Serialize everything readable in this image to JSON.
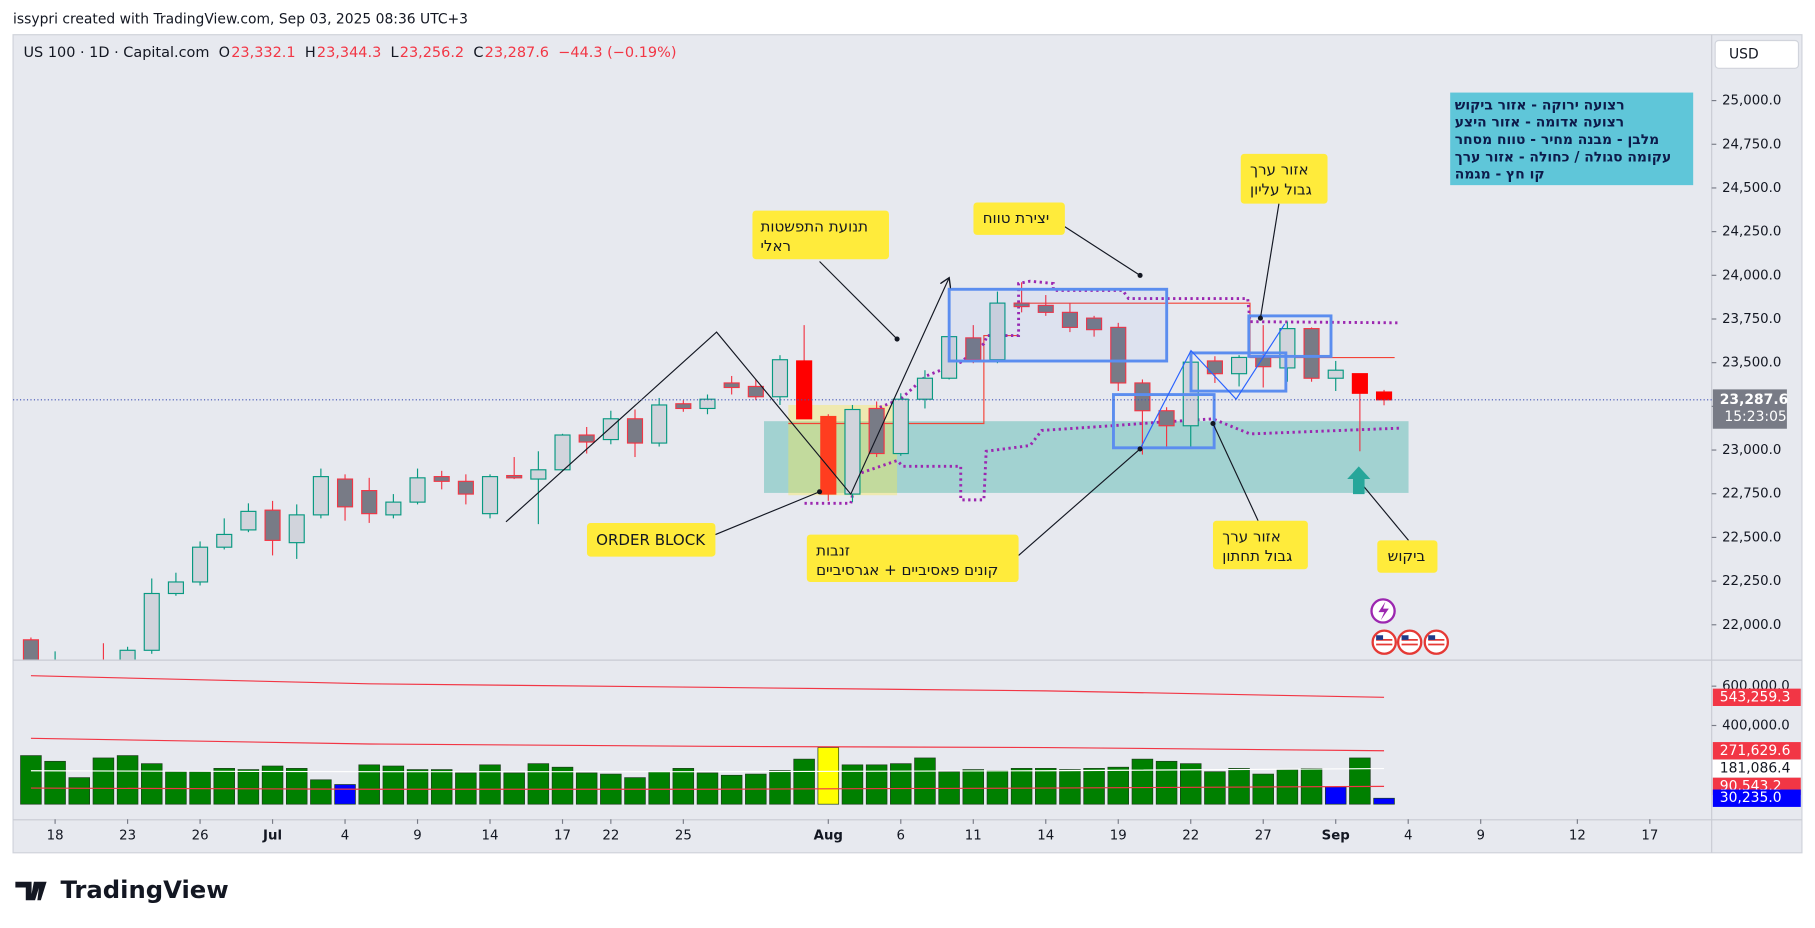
{
  "header": "issypri created with TradingView.com, Sep 03, 2025 08:36 UTC+3",
  "logo": "TradingView",
  "annotations": [
    [
      "תנועת התפשטות",
      "ראלי"
    ],
    [
      "יצירת טווח"
    ],
    [
      "אזור ערך",
      "גבול עליון"
    ],
    [
      "ORDER BLOCK"
    ],
    [
      "זנבות",
      "קונים פאסיביים + אגרסיביים"
    ],
    [
      "אזור ערך",
      "גבול תחתון"
    ],
    [
      "ביקוש"
    ]
  ],
  "legend_box": [
    "רצועה ירוקה - אזור ביקוש",
    "רצועה אדומה - אזור היצע",
    "מלבן - מבנה מחיר - טווח מסחר",
    "עקומה סגולה / כחולה - אזור ערך",
    "קו חץ - מגמה"
  ],
  "chart_data": [
    {
      "type": "candlestick",
      "title": "US 100 · 1D · Capital.com",
      "ohlc_legend": [
        {
          "key": "O",
          "value": "23,332.1"
        },
        {
          "key": "H",
          "value": "23,344.3"
        },
        {
          "key": "L",
          "value": "23,256.2"
        },
        {
          "key": "C",
          "value": "23,287.6"
        }
      ],
      "change": "−44.3 (−0.19%)",
      "currency": "USD",
      "price_badge": {
        "value": 23287.6,
        "label": "23,287.6"
      },
      "countdown": "15:23:05",
      "up_color": "#089981",
      "up_fill": "#d1d4dc",
      "down_color": "#f23645",
      "down_fill": "#787b86",
      "grid": false,
      "xlim": [
        -0.74,
        69.56
      ],
      "ylim": [
        21801,
        25377
      ],
      "yticks": [
        {
          "value": 22000,
          "label": "22,000.0"
        },
        {
          "value": 22250,
          "label": "22,250.0"
        },
        {
          "value": 22500,
          "label": "22,500.0"
        },
        {
          "value": 22750,
          "label": "22,750.0"
        },
        {
          "value": 23000,
          "label": "23,000.0"
        },
        {
          "value": 23250,
          "label": "23,250.0"
        },
        {
          "value": 23500,
          "label": "23,500.0"
        },
        {
          "value": 23750,
          "label": "23,750.0"
        },
        {
          "value": 24000,
          "label": "24,000.0"
        },
        {
          "value": 24250,
          "label": "24,250.0"
        },
        {
          "value": 24500,
          "label": "24,500.0"
        },
        {
          "value": 24750,
          "label": "24,750.0"
        },
        {
          "value": 25000,
          "label": "25,000.0"
        }
      ],
      "x": [
        0,
        1,
        2,
        3,
        4,
        5,
        6,
        7,
        8,
        9,
        10,
        11,
        12,
        13,
        14,
        15,
        16,
        17,
        18,
        19,
        20,
        21,
        22,
        23,
        24,
        25,
        26,
        27,
        28,
        29,
        30,
        31,
        32,
        33,
        34,
        35,
        36,
        37,
        38,
        39,
        40,
        41,
        42,
        43,
        44,
        45,
        46,
        47,
        48,
        49,
        50,
        51,
        52,
        53,
        54,
        55,
        56
      ],
      "open": [
        21914,
        21760,
        21720,
        21780,
        21760,
        21854,
        22179,
        22245,
        22444,
        22543,
        22656,
        22470,
        22629,
        22834,
        22768,
        22629,
        22702,
        22848,
        22821,
        22636,
        22854,
        22834,
        22887,
        23086,
        23060,
        23179,
        23040,
        23265,
        23238,
        23384,
        23364,
        23305,
        23510,
        23192,
        22748,
        23238,
        22980,
        23291,
        23411,
        23642,
        23517,
        23841,
        23828,
        23788,
        23755,
        23702,
        23384,
        23225,
        23139,
        23510,
        23437,
        23530,
        23470,
        23695,
        23411,
        23437,
        23332.1
      ],
      "high": [
        21927,
        21848,
        21780,
        21894,
        21874,
        22265,
        22298,
        22477,
        22609,
        22695,
        22709,
        22689,
        22894,
        22861,
        22841,
        22748,
        22894,
        22881,
        22861,
        22861,
        22960,
        22993,
        23093,
        23132,
        23225,
        23232,
        23298,
        23285,
        23318,
        23424,
        23404,
        23543,
        23715,
        23205,
        23258,
        23278,
        23325,
        23457,
        23662,
        23715,
        23907,
        23960,
        23887,
        23841,
        23768,
        23728,
        23404,
        23245,
        23537,
        23537,
        23543,
        23715,
        23735,
        23702,
        23510,
        23437,
        23344.3
      ],
      "low": [
        21760,
        21700,
        21650,
        21700,
        21740,
        21834,
        22166,
        22225,
        22431,
        22530,
        22397,
        22377,
        22609,
        22596,
        22583,
        22609,
        22689,
        22775,
        22689,
        22609,
        22834,
        22576,
        22880,
        22980,
        23033,
        22960,
        23020,
        23219,
        23205,
        23318,
        23285,
        23258,
        23179,
        22709,
        22702,
        22960,
        22967,
        23238,
        23404,
        23497,
        23497,
        23788,
        23768,
        23675,
        23649,
        23338,
        22974,
        23020,
        23020,
        23384,
        23364,
        23358,
        23391,
        23391,
        23338,
        22993,
        23256.2
      ],
      "close": [
        21780,
        21790,
        21700,
        21750,
        21854,
        22179,
        22245,
        22444,
        22517,
        22649,
        22483,
        22629,
        22848,
        22675,
        22636,
        22702,
        22841,
        22821,
        22748,
        22848,
        22841,
        22887,
        23086,
        23046,
        23179,
        23040,
        23258,
        23238,
        23291,
        23358,
        23305,
        23517,
        23179,
        22748,
        23232,
        22980,
        23291,
        23411,
        23649,
        23517,
        23841,
        23821,
        23788,
        23702,
        23689,
        23384,
        23225,
        23139,
        23503,
        23437,
        23530,
        23477,
        23695,
        23411,
        23457,
        23325,
        23287.6
      ],
      "body_colors": [
        null,
        null,
        null,
        null,
        null,
        null,
        null,
        null,
        null,
        null,
        null,
        null,
        null,
        null,
        null,
        null,
        null,
        null,
        null,
        null,
        null,
        null,
        null,
        null,
        null,
        null,
        null,
        null,
        null,
        null,
        null,
        null,
        "#ff0000",
        "#ff3d1f",
        null,
        null,
        null,
        null,
        null,
        null,
        null,
        null,
        null,
        null,
        null,
        null,
        null,
        null,
        null,
        null,
        null,
        null,
        null,
        null,
        null,
        "#ff0000",
        "#ff0000"
      ]
    },
    {
      "type": "volume",
      "color": "#008000",
      "xlim": [
        -0.74,
        69.56
      ],
      "ylim": [
        -76500,
        723500
      ],
      "yticks": [
        {
          "value": 400000,
          "label": "400,000.0"
        },
        {
          "value": 600000,
          "label": "600,000.0"
        }
      ],
      "xticks": [
        {
          "value": 1,
          "label": "18"
        },
        {
          "value": 4,
          "label": "23"
        },
        {
          "value": 7,
          "label": "26"
        },
        {
          "value": 10,
          "label": "Jul"
        },
        {
          "value": 13,
          "label": "4"
        },
        {
          "value": 16,
          "label": "9"
        },
        {
          "value": 19,
          "label": "14"
        },
        {
          "value": 22,
          "label": "17"
        },
        {
          "value": 24,
          "label": "22"
        },
        {
          "value": 27,
          "label": "25"
        },
        {
          "value": 33,
          "label": "Aug"
        },
        {
          "value": 36,
          "label": "6"
        },
        {
          "value": 39,
          "label": "11"
        },
        {
          "value": 42,
          "label": "14"
        },
        {
          "value": 45,
          "label": "19"
        },
        {
          "value": 48,
          "label": "22"
        },
        {
          "value": 51,
          "label": "27"
        },
        {
          "value": 54,
          "label": "Sep"
        },
        {
          "value": 57,
          "label": "4"
        },
        {
          "value": 60,
          "label": "9"
        },
        {
          "value": 64,
          "label": "12"
        },
        {
          "value": 67,
          "label": "17"
        }
      ],
      "x": [
        0,
        1,
        2,
        3,
        4,
        5,
        6,
        7,
        8,
        9,
        10,
        11,
        12,
        13,
        14,
        15,
        16,
        17,
        18,
        19,
        20,
        21,
        22,
        23,
        24,
        25,
        26,
        27,
        28,
        29,
        30,
        31,
        32,
        33,
        34,
        35,
        36,
        37,
        38,
        39,
        40,
        41,
        42,
        43,
        44,
        45,
        46,
        47,
        48,
        49,
        50,
        51,
        52,
        53,
        54,
        55,
        56
      ],
      "values": [
        247000,
        218000,
        135000,
        235000,
        247000,
        206000,
        165000,
        165000,
        182000,
        176000,
        194000,
        182000,
        124000,
        100000,
        200000,
        194000,
        176000,
        176000,
        159000,
        200000,
        159000,
        206000,
        188000,
        159000,
        153000,
        135000,
        165000,
        182000,
        159000,
        147000,
        153000,
        171000,
        229000,
        288000,
        200000,
        200000,
        206000,
        235000,
        165000,
        176000,
        171000,
        182000,
        182000,
        176000,
        182000,
        188000,
        229000,
        218000,
        206000,
        165000,
        182000,
        153000,
        176000,
        182000,
        88000,
        235000,
        30235
      ],
      "value_labels": [
        null,
        null,
        null,
        null,
        null,
        null,
        null,
        null,
        null,
        null,
        null,
        null,
        null,
        null,
        null,
        null,
        null,
        null,
        null,
        null,
        null,
        null,
        null,
        null,
        null,
        null,
        null,
        null,
        null,
        null,
        null,
        null,
        null,
        null,
        null,
        null,
        null,
        null,
        null,
        null,
        null,
        null,
        null,
        null,
        null,
        null,
        null,
        null,
        null,
        null,
        null,
        null,
        null,
        null,
        null,
        null,
        "30,235.0"
      ],
      "colors": [
        null,
        null,
        null,
        null,
        null,
        null,
        null,
        null,
        null,
        null,
        null,
        null,
        null,
        "#0000ff",
        null,
        null,
        null,
        null,
        null,
        null,
        null,
        null,
        null,
        null,
        null,
        null,
        null,
        null,
        null,
        null,
        null,
        null,
        null,
        "#ffff00",
        null,
        null,
        null,
        null,
        null,
        null,
        null,
        null,
        null,
        null,
        null,
        null,
        null,
        null,
        null,
        null,
        null,
        null,
        null,
        null,
        "#0000ff",
        null,
        "#0000ff"
      ],
      "series": [
        {
          "color": "#f23645",
          "x": [
            0,
            14,
            28,
            42,
            56
          ],
          "values": [
            653000,
            612000,
            594000,
            576000,
            543259.3
          ],
          "value_labels": [
            null,
            null,
            null,
            null,
            "543,259.3"
          ]
        },
        {
          "color": "#f23645",
          "x": [
            0,
            14,
            28,
            42,
            56
          ],
          "values": [
            335000,
            306000,
            294000,
            288000,
            271629.6
          ],
          "value_labels": [
            null,
            null,
            null,
            null,
            "271,629.6"
          ]
        },
        {
          "color": "#ffffff",
          "x": [
            0,
            14,
            28,
            42,
            56
          ],
          "values": [
            170000,
            165000,
            165000,
            170000,
            181086.4
          ],
          "value_labels": [
            null,
            null,
            null,
            null,
            "181,086.4"
          ]
        },
        {
          "color": "#f23645",
          "x": [
            0,
            14,
            28,
            42,
            56
          ],
          "values": [
            82000,
            76000,
            76000,
            82000,
            90543.2
          ],
          "value_labels": [
            null,
            null,
            null,
            null,
            "90,543.2"
          ]
        }
      ]
    }
  ]
}
